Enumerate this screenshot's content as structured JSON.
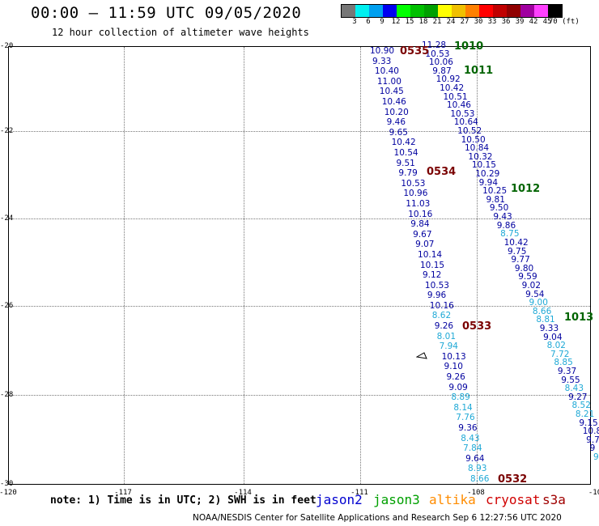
{
  "header": {
    "title": "00:00 – 11:59 UTC 09/05/2020",
    "subtitle": "12 hour collection of altimeter wave heights"
  },
  "colorbar": {
    "colors": [
      "#777777",
      "#00f0f0",
      "#00a0f0",
      "#0000f0",
      "#00ff00",
      "#00c000",
      "#00a000",
      "#ffff00",
      "#f0c000",
      "#ff8000",
      "#ff0000",
      "#c00000",
      "#900000",
      "#a000a0",
      "#ff40ff",
      "#000000"
    ],
    "labels": [
      "3",
      "6",
      "9",
      "12",
      "15",
      "18",
      "21",
      "24",
      "27",
      "30",
      "33",
      "36",
      "39",
      "42",
      "45",
      "70 (ft)"
    ]
  },
  "map": {
    "lat_labels": [
      "-20",
      "-22",
      "-24",
      "-26",
      "-28",
      "-30"
    ],
    "lon_labels": [
      "-120",
      "-117",
      "-114",
      "-111",
      "-108",
      "-10"
    ]
  },
  "passes": [
    {
      "label": "0535",
      "color": "#7a0000"
    },
    {
      "label": "1010",
      "color": "#006400"
    },
    {
      "label": "1011",
      "color": "#006400"
    },
    {
      "label": "0534",
      "color": "#7a0000"
    },
    {
      "label": "1012",
      "color": "#006400"
    },
    {
      "label": "0533",
      "color": "#7a0000"
    },
    {
      "label": "1013",
      "color": "#006400"
    },
    {
      "label": "0532",
      "color": "#7a0000"
    }
  ],
  "track_a": [
    [
      "10.90",
      "d"
    ],
    [
      "9.33",
      "d"
    ],
    [
      "10.40",
      "d"
    ],
    [
      "11.00",
      "d"
    ],
    [
      "10.45",
      "d"
    ],
    [
      "10.46",
      "d"
    ],
    [
      "10.20",
      "d"
    ],
    [
      "9.46",
      "d"
    ],
    [
      "9.65",
      "d"
    ],
    [
      "10.42",
      "d"
    ],
    [
      "10.54",
      "d"
    ],
    [
      "9.51",
      "d"
    ],
    [
      "9.79",
      "d"
    ],
    [
      "10.53",
      "d"
    ],
    [
      "10.96",
      "d"
    ],
    [
      "11.03",
      "d"
    ],
    [
      "10.16",
      "d"
    ],
    [
      "9.84",
      "d"
    ],
    [
      "9.67",
      "d"
    ],
    [
      "9.07",
      "d"
    ],
    [
      "10.14",
      "d"
    ],
    [
      "10.15",
      "d"
    ],
    [
      "9.12",
      "d"
    ],
    [
      "10.53",
      "d"
    ],
    [
      "9.96",
      "d"
    ],
    [
      "10.16",
      "d"
    ],
    [
      "8.62",
      "l"
    ],
    [
      "9.26",
      "d"
    ],
    [
      "8.01",
      "l"
    ],
    [
      "7.94",
      "l"
    ],
    [
      "10.13",
      "d"
    ],
    [
      "9.10",
      "d"
    ],
    [
      "9.26",
      "d"
    ],
    [
      "9.09",
      "d"
    ],
    [
      "8.89",
      "l"
    ],
    [
      "8.14",
      "l"
    ],
    [
      "7.76",
      "l"
    ],
    [
      "9.36",
      "d"
    ],
    [
      "8.43",
      "l"
    ],
    [
      "7.84",
      "l"
    ],
    [
      "9.64",
      "d"
    ],
    [
      "8.93",
      "l"
    ],
    [
      "8.66",
      "l"
    ]
  ],
  "track_b": [
    [
      "11.28",
      "d"
    ],
    [
      "10.53",
      "d"
    ],
    [
      "10.06",
      "d"
    ],
    [
      "9.87",
      "d"
    ],
    [
      "10.92",
      "d"
    ],
    [
      "10.42",
      "d"
    ],
    [
      "10.51",
      "d"
    ],
    [
      "10.46",
      "d"
    ],
    [
      "10.53",
      "d"
    ],
    [
      "10.64",
      "d"
    ],
    [
      "10.52",
      "d"
    ],
    [
      "10.50",
      "d"
    ],
    [
      "10.84",
      "d"
    ],
    [
      "10.32",
      "d"
    ],
    [
      "10.15",
      "d"
    ],
    [
      "10.29",
      "d"
    ],
    [
      "9.94",
      "d"
    ],
    [
      "10.25",
      "d"
    ],
    [
      "9.81",
      "d"
    ],
    [
      "9.50",
      "d"
    ],
    [
      "9.43",
      "d"
    ],
    [
      "9.86",
      "d"
    ],
    [
      "8.75",
      "l"
    ],
    [
      "10.42",
      "d"
    ],
    [
      "9.75",
      "d"
    ],
    [
      "9.77",
      "d"
    ],
    [
      "9.80",
      "d"
    ],
    [
      "9.59",
      "d"
    ],
    [
      "9.02",
      "d"
    ],
    [
      "9.54",
      "d"
    ],
    [
      "9.00",
      "l"
    ],
    [
      "8.66",
      "l"
    ],
    [
      "8.81",
      "l"
    ],
    [
      "9.33",
      "d"
    ],
    [
      "9.04",
      "d"
    ],
    [
      "8.02",
      "l"
    ],
    [
      "7.72",
      "l"
    ],
    [
      "8.85",
      "l"
    ],
    [
      "9.37",
      "d"
    ],
    [
      "9.55",
      "d"
    ],
    [
      "8.43",
      "l"
    ],
    [
      "9.27",
      "d"
    ],
    [
      "8.52",
      "l"
    ],
    [
      "8.21",
      "l"
    ],
    [
      "9.15",
      "d"
    ],
    [
      "10.8",
      "d"
    ],
    [
      "9.7",
      "d"
    ],
    [
      "9",
      "d"
    ],
    [
      "9",
      "l"
    ]
  ],
  "footer": {
    "note": "note: 1) Time is in UTC; 2) SWH is in feet",
    "legend": [
      {
        "name": "jason2",
        "color": "#0000d0"
      },
      {
        "name": "jason3",
        "color": "#00a000"
      },
      {
        "name": "altika",
        "color": "#ff8c00"
      },
      {
        "name": "cryosat",
        "color": "#d00000"
      },
      {
        "name": "s3a",
        "color": "#a00000"
      }
    ],
    "credit": "NOAA/NESDIS Center for Satellite Applications and Research    Sep  6 12:27:56 UTC 2020"
  }
}
